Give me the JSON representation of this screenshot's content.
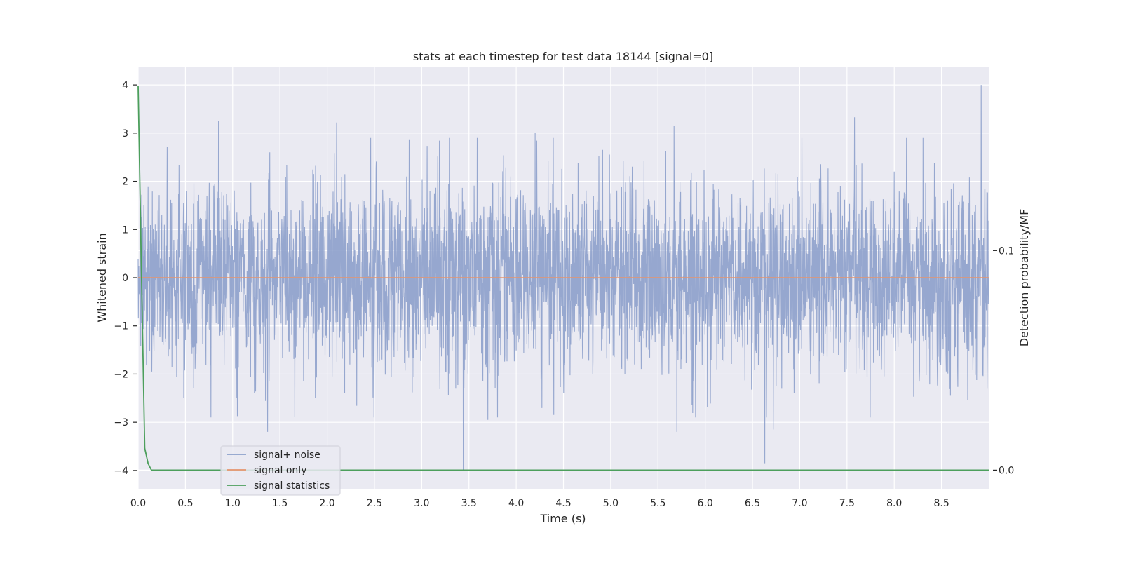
{
  "chart_data": {
    "type": "line",
    "title": "stats at each timestep for test data 18144 [signal=0]",
    "xlabel": "Time (s)",
    "ylabel": "Whitened strain",
    "y2label": "Detection probability/MF",
    "xlim": [
      0.0,
      9.0
    ],
    "ylim": [
      -4.38,
      4.38
    ],
    "y2lim": [
      -0.0085,
      0.1838
    ],
    "grid": true,
    "legend_position": "bottom-left",
    "xticks": [
      {
        "value": 0.0,
        "label": "0.0"
      },
      {
        "value": 0.5,
        "label": "0.5"
      },
      {
        "value": 1.0,
        "label": "1.0"
      },
      {
        "value": 1.5,
        "label": "1.5"
      },
      {
        "value": 2.0,
        "label": "2.0"
      },
      {
        "value": 2.5,
        "label": "2.5"
      },
      {
        "value": 3.0,
        "label": "3.0"
      },
      {
        "value": 3.5,
        "label": "3.5"
      },
      {
        "value": 4.0,
        "label": "4.0"
      },
      {
        "value": 4.5,
        "label": "4.5"
      },
      {
        "value": 5.0,
        "label": "5.0"
      },
      {
        "value": 5.5,
        "label": "5.5"
      },
      {
        "value": 6.0,
        "label": "6.0"
      },
      {
        "value": 6.5,
        "label": "6.5"
      },
      {
        "value": 7.0,
        "label": "7.0"
      },
      {
        "value": 7.5,
        "label": "7.5"
      },
      {
        "value": 8.0,
        "label": "8.0"
      },
      {
        "value": 8.5,
        "label": "8.5"
      }
    ],
    "yticks": [
      {
        "value": 4,
        "label": "4"
      },
      {
        "value": 3,
        "label": "3"
      },
      {
        "value": 2,
        "label": "2"
      },
      {
        "value": 1,
        "label": "1"
      },
      {
        "value": 0,
        "label": "0"
      },
      {
        "value": -1,
        "label": "−1"
      },
      {
        "value": -2,
        "label": "−2"
      },
      {
        "value": -3,
        "label": "−3"
      },
      {
        "value": -4,
        "label": "−4"
      }
    ],
    "y2ticks": [
      {
        "value": 0.1,
        "label": "0.1"
      },
      {
        "value": 0.0,
        "label": "0.0"
      }
    ],
    "series": [
      {
        "name": "signal+ noise",
        "color": "#8da0cb",
        "axis": "left",
        "x_start": 0.0,
        "x_end": 9.0,
        "typical_band": [
          -1.0,
          1.0
        ],
        "peaks": [
          {
            "x": 0.85,
            "y": 3.25
          },
          {
            "x": 2.1,
            "y": 3.22
          },
          {
            "x": 4.2,
            "y": 3.0
          },
          {
            "x": 5.67,
            "y": 3.15
          },
          {
            "x": 7.58,
            "y": 3.33
          },
          {
            "x": 8.92,
            "y": 4.0
          },
          {
            "x": 1.37,
            "y": -3.2
          },
          {
            "x": 3.44,
            "y": -4.0
          },
          {
            "x": 5.7,
            "y": -3.2
          },
          {
            "x": 6.63,
            "y": -3.85
          },
          {
            "x": 6.72,
            "y": -3.15
          },
          {
            "x": 3.7,
            "y": -2.95
          }
        ]
      },
      {
        "name": "signal only",
        "color": "#e5946d",
        "axis": "left",
        "x": [
          0.0,
          9.0
        ],
        "y": [
          0.0,
          0.0
        ]
      },
      {
        "name": "signal statistics",
        "color": "#4c9f5c",
        "axis": "right",
        "x": [
          0.0,
          0.035,
          0.07,
          0.105,
          0.14,
          9.0
        ],
        "y": [
          0.175,
          0.09,
          0.01,
          0.003,
          0.0,
          0.0
        ]
      }
    ]
  }
}
